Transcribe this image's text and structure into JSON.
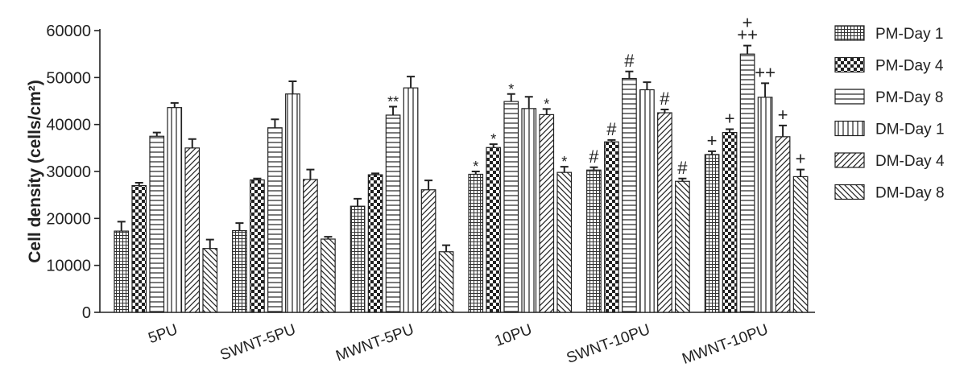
{
  "chart_data": {
    "type": "bar",
    "ylabel": "Cell density (cells/cm²)",
    "ylim": [
      0,
      60000
    ],
    "yticks": [
      "0",
      "10000",
      "20000",
      "30000",
      "40000",
      "50000",
      "60000"
    ],
    "categories": [
      "5PU",
      "SWNT-5PU",
      "MWNT-5PU",
      "10PU",
      "SWNT-10PU",
      "MWNT-10PU"
    ],
    "legend_position": "right",
    "grid": false,
    "series": [
      {
        "name": "PM-Day 1",
        "pattern": "grid-fine",
        "values": [
          17300,
          17400,
          22600,
          29400,
          30300,
          33600
        ],
        "errors": [
          2000,
          1600,
          1600,
          600,
          600,
          700
        ],
        "annotations": [
          "",
          "",
          "",
          "*",
          "#",
          "+"
        ]
      },
      {
        "name": "PM-Day 4",
        "pattern": "checker",
        "values": [
          27000,
          28200,
          29300,
          35100,
          36300,
          38300
        ],
        "errors": [
          600,
          300,
          300,
          700,
          400,
          700
        ],
        "annotations": [
          "",
          "",
          "",
          "*",
          "#",
          "+"
        ]
      },
      {
        "name": "PM-Day 8",
        "pattern": "horizontal",
        "values": [
          37500,
          39300,
          42000,
          44900,
          49800,
          55000
        ],
        "errors": [
          800,
          1800,
          1800,
          1600,
          1500,
          1800
        ],
        "annotations": [
          "",
          "",
          "**",
          "*",
          "#",
          "++\n+"
        ]
      },
      {
        "name": "DM-Day 1",
        "pattern": "vertical",
        "values": [
          43600,
          46500,
          47800,
          43400,
          47400,
          45800
        ],
        "errors": [
          1000,
          2700,
          2400,
          2500,
          1600,
          3000
        ],
        "annotations": [
          "",
          "",
          "",
          "",
          "",
          "++"
        ]
      },
      {
        "name": "DM-Day 4",
        "pattern": "diag-up",
        "values": [
          35000,
          28300,
          26100,
          42100,
          42500,
          37400
        ],
        "errors": [
          1900,
          2100,
          2000,
          1200,
          700,
          2400
        ],
        "annotations": [
          "",
          "",
          "",
          "*",
          "#",
          "+"
        ]
      },
      {
        "name": "DM-Day 8",
        "pattern": "diag-down",
        "values": [
          13600,
          15600,
          12900,
          29800,
          27900,
          28900
        ],
        "errors": [
          1900,
          500,
          1400,
          1200,
          600,
          1500
        ],
        "annotations": [
          "",
          "",
          "",
          "*",
          "#",
          "+"
        ]
      }
    ]
  }
}
